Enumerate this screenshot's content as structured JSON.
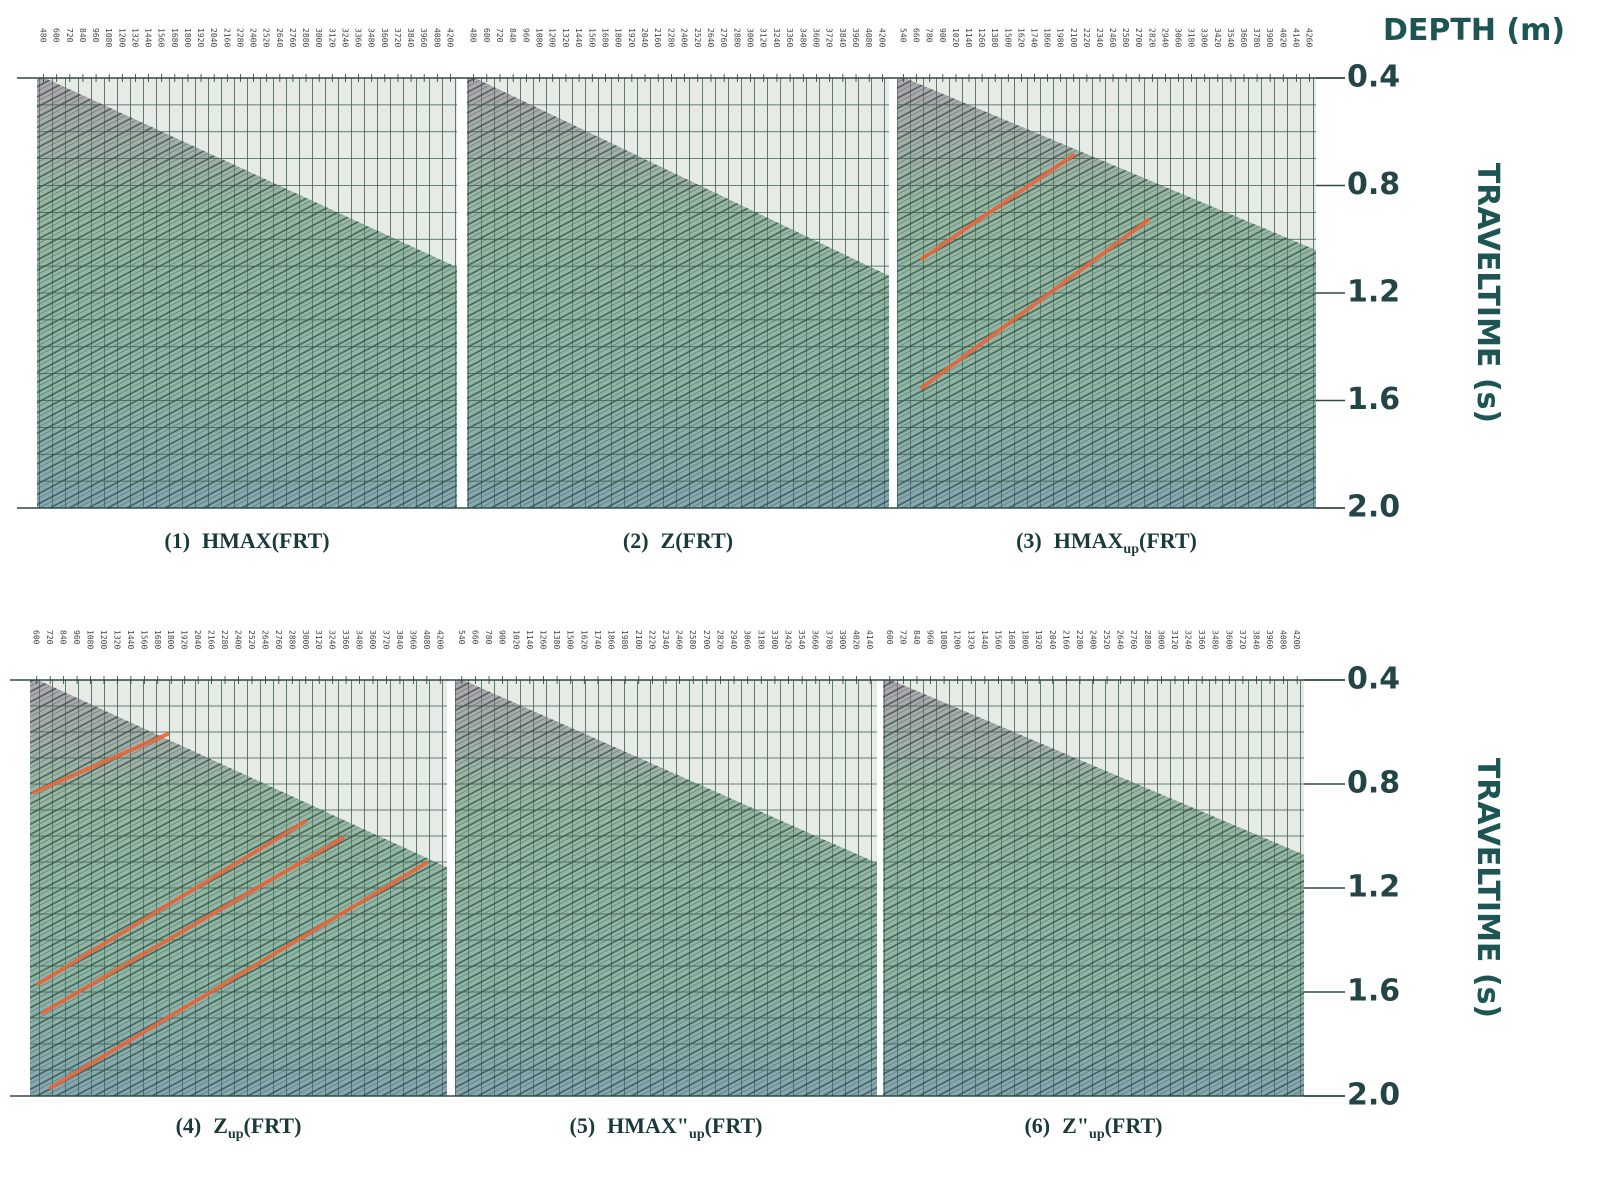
{
  "header": {
    "depth_title": "DEPTH (m)"
  },
  "rows": [
    {
      "axis_title": "TRAVELTIME (s)",
      "time_labels": [
        "0.4",
        "0.8",
        "1.2",
        "1.6",
        "2.0"
      ],
      "panels": [
        {
          "depths": [
            480,
            600,
            720,
            840,
            960,
            1080,
            1200,
            1320,
            1440,
            1560,
            1680,
            1800,
            1920,
            2040,
            2160,
            2280,
            2400,
            2520,
            2640,
            2760,
            2880,
            3000,
            3120,
            3240,
            3360,
            3480,
            3600,
            3720,
            3840,
            3960,
            4080,
            4200
          ],
          "caption": {
            "number": "(1)",
            "name": "HMAX",
            "suffix": "(FRT)"
          }
        },
        {
          "depths": [
            480,
            600,
            720,
            840,
            960,
            1080,
            1200,
            1320,
            1440,
            1560,
            1680,
            1800,
            1920,
            2040,
            2160,
            2280,
            2400,
            2520,
            2640,
            2760,
            2880,
            3000,
            3120,
            3240,
            3360,
            3480,
            3600,
            3720,
            3840,
            3960,
            4080,
            4200
          ],
          "caption": {
            "number": "(2)",
            "name": "Z",
            "suffix": "(FRT)"
          }
        },
        {
          "depths": [
            540,
            660,
            780,
            900,
            1020,
            1140,
            1260,
            1380,
            1500,
            1620,
            1740,
            1860,
            1980,
            2100,
            2220,
            2340,
            2460,
            2580,
            2700,
            2820,
            2940,
            3060,
            3180,
            3300,
            3420,
            3540,
            3660,
            3780,
            3900,
            4020,
            4140,
            4260
          ],
          "caption": {
            "number": "(3)",
            "name": "HMAX",
            "sub": "up",
            "suffix": "(FRT)"
          }
        }
      ]
    },
    {
      "axis_title": "TRAVELTIME (s)",
      "time_labels": [
        "0.4",
        "0.8",
        "1.2",
        "1.6",
        "2.0"
      ],
      "panels": [
        {
          "depths": [
            600,
            720,
            840,
            960,
            1080,
            1200,
            1320,
            1440,
            1560,
            1680,
            1800,
            1920,
            2040,
            2160,
            2280,
            2400,
            2520,
            2640,
            2760,
            2880,
            3000,
            3120,
            3240,
            3360,
            3480,
            3600,
            3720,
            3840,
            3960,
            4080,
            4200
          ],
          "caption": {
            "number": "(4)",
            "name": "Z",
            "sub": "up",
            "suffix": "(FRT)"
          }
        },
        {
          "depths": [
            540,
            660,
            780,
            900,
            1020,
            1140,
            1260,
            1380,
            1500,
            1620,
            1740,
            1860,
            1980,
            2100,
            2220,
            2340,
            2460,
            2580,
            2700,
            2820,
            2940,
            3060,
            3180,
            3300,
            3420,
            3540,
            3660,
            3780,
            3900,
            4020,
            4140
          ],
          "caption": {
            "number": "(5)",
            "name": "HMAX\"",
            "sub": "up",
            "suffix": "(FRT)"
          }
        },
        {
          "depths": [
            600,
            720,
            840,
            960,
            1080,
            1200,
            1320,
            1440,
            1560,
            1680,
            1800,
            1920,
            2040,
            2160,
            2280,
            2400,
            2520,
            2640,
            2760,
            2880,
            3000,
            3120,
            3240,
            3360,
            3480,
            3600,
            3720,
            3840,
            3960,
            4080,
            4200
          ],
          "caption": {
            "number": "(6)",
            "name": "Z\"",
            "sub": "up",
            "suffix": "(FRT)"
          }
        }
      ]
    }
  ]
}
